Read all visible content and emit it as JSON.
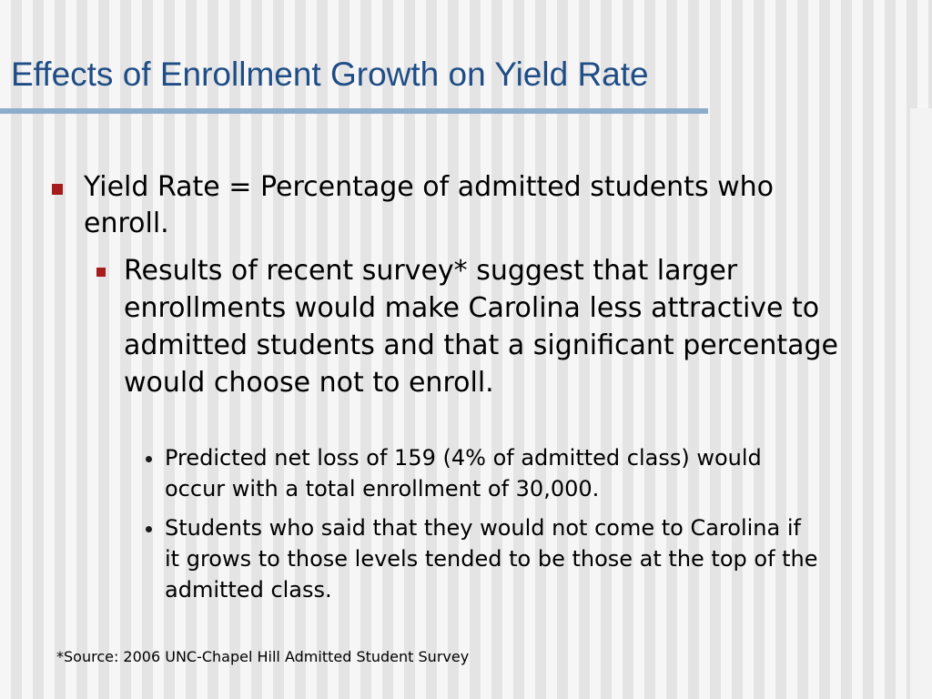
{
  "slide": {
    "title": "Effects of Enrollment Growth on Yield Rate",
    "bullets": [
      {
        "level": 1,
        "text": "Yield Rate = Percentage of admitted students who enroll."
      },
      {
        "level": 2,
        "text": "Results of recent survey* suggest that larger enrollments would make Carolina less attractive to admitted students and that a significant percentage would choose not to enroll."
      },
      {
        "level": 3,
        "text": "Predicted net loss of 159 (4% of admitted class) would occur with a total enrollment of 30,000."
      },
      {
        "level": 3,
        "text": "Students who said that they would not come to Carolina if it grows to those levels tended to be those at the top of the admitted class."
      }
    ],
    "footnote": "*Source: 2006 UNC-Chapel Hill Admitted Student Survey"
  },
  "colors": {
    "title": "#1f4d86",
    "title_rule": "#8eaccb",
    "bullet_square": "#a61c1c",
    "text": "#000000"
  },
  "icons": {
    "level1_bullet": "square-bullet-icon",
    "level2_bullet": "square-bullet-icon",
    "level3_bullet": "round-bullet-icon"
  }
}
